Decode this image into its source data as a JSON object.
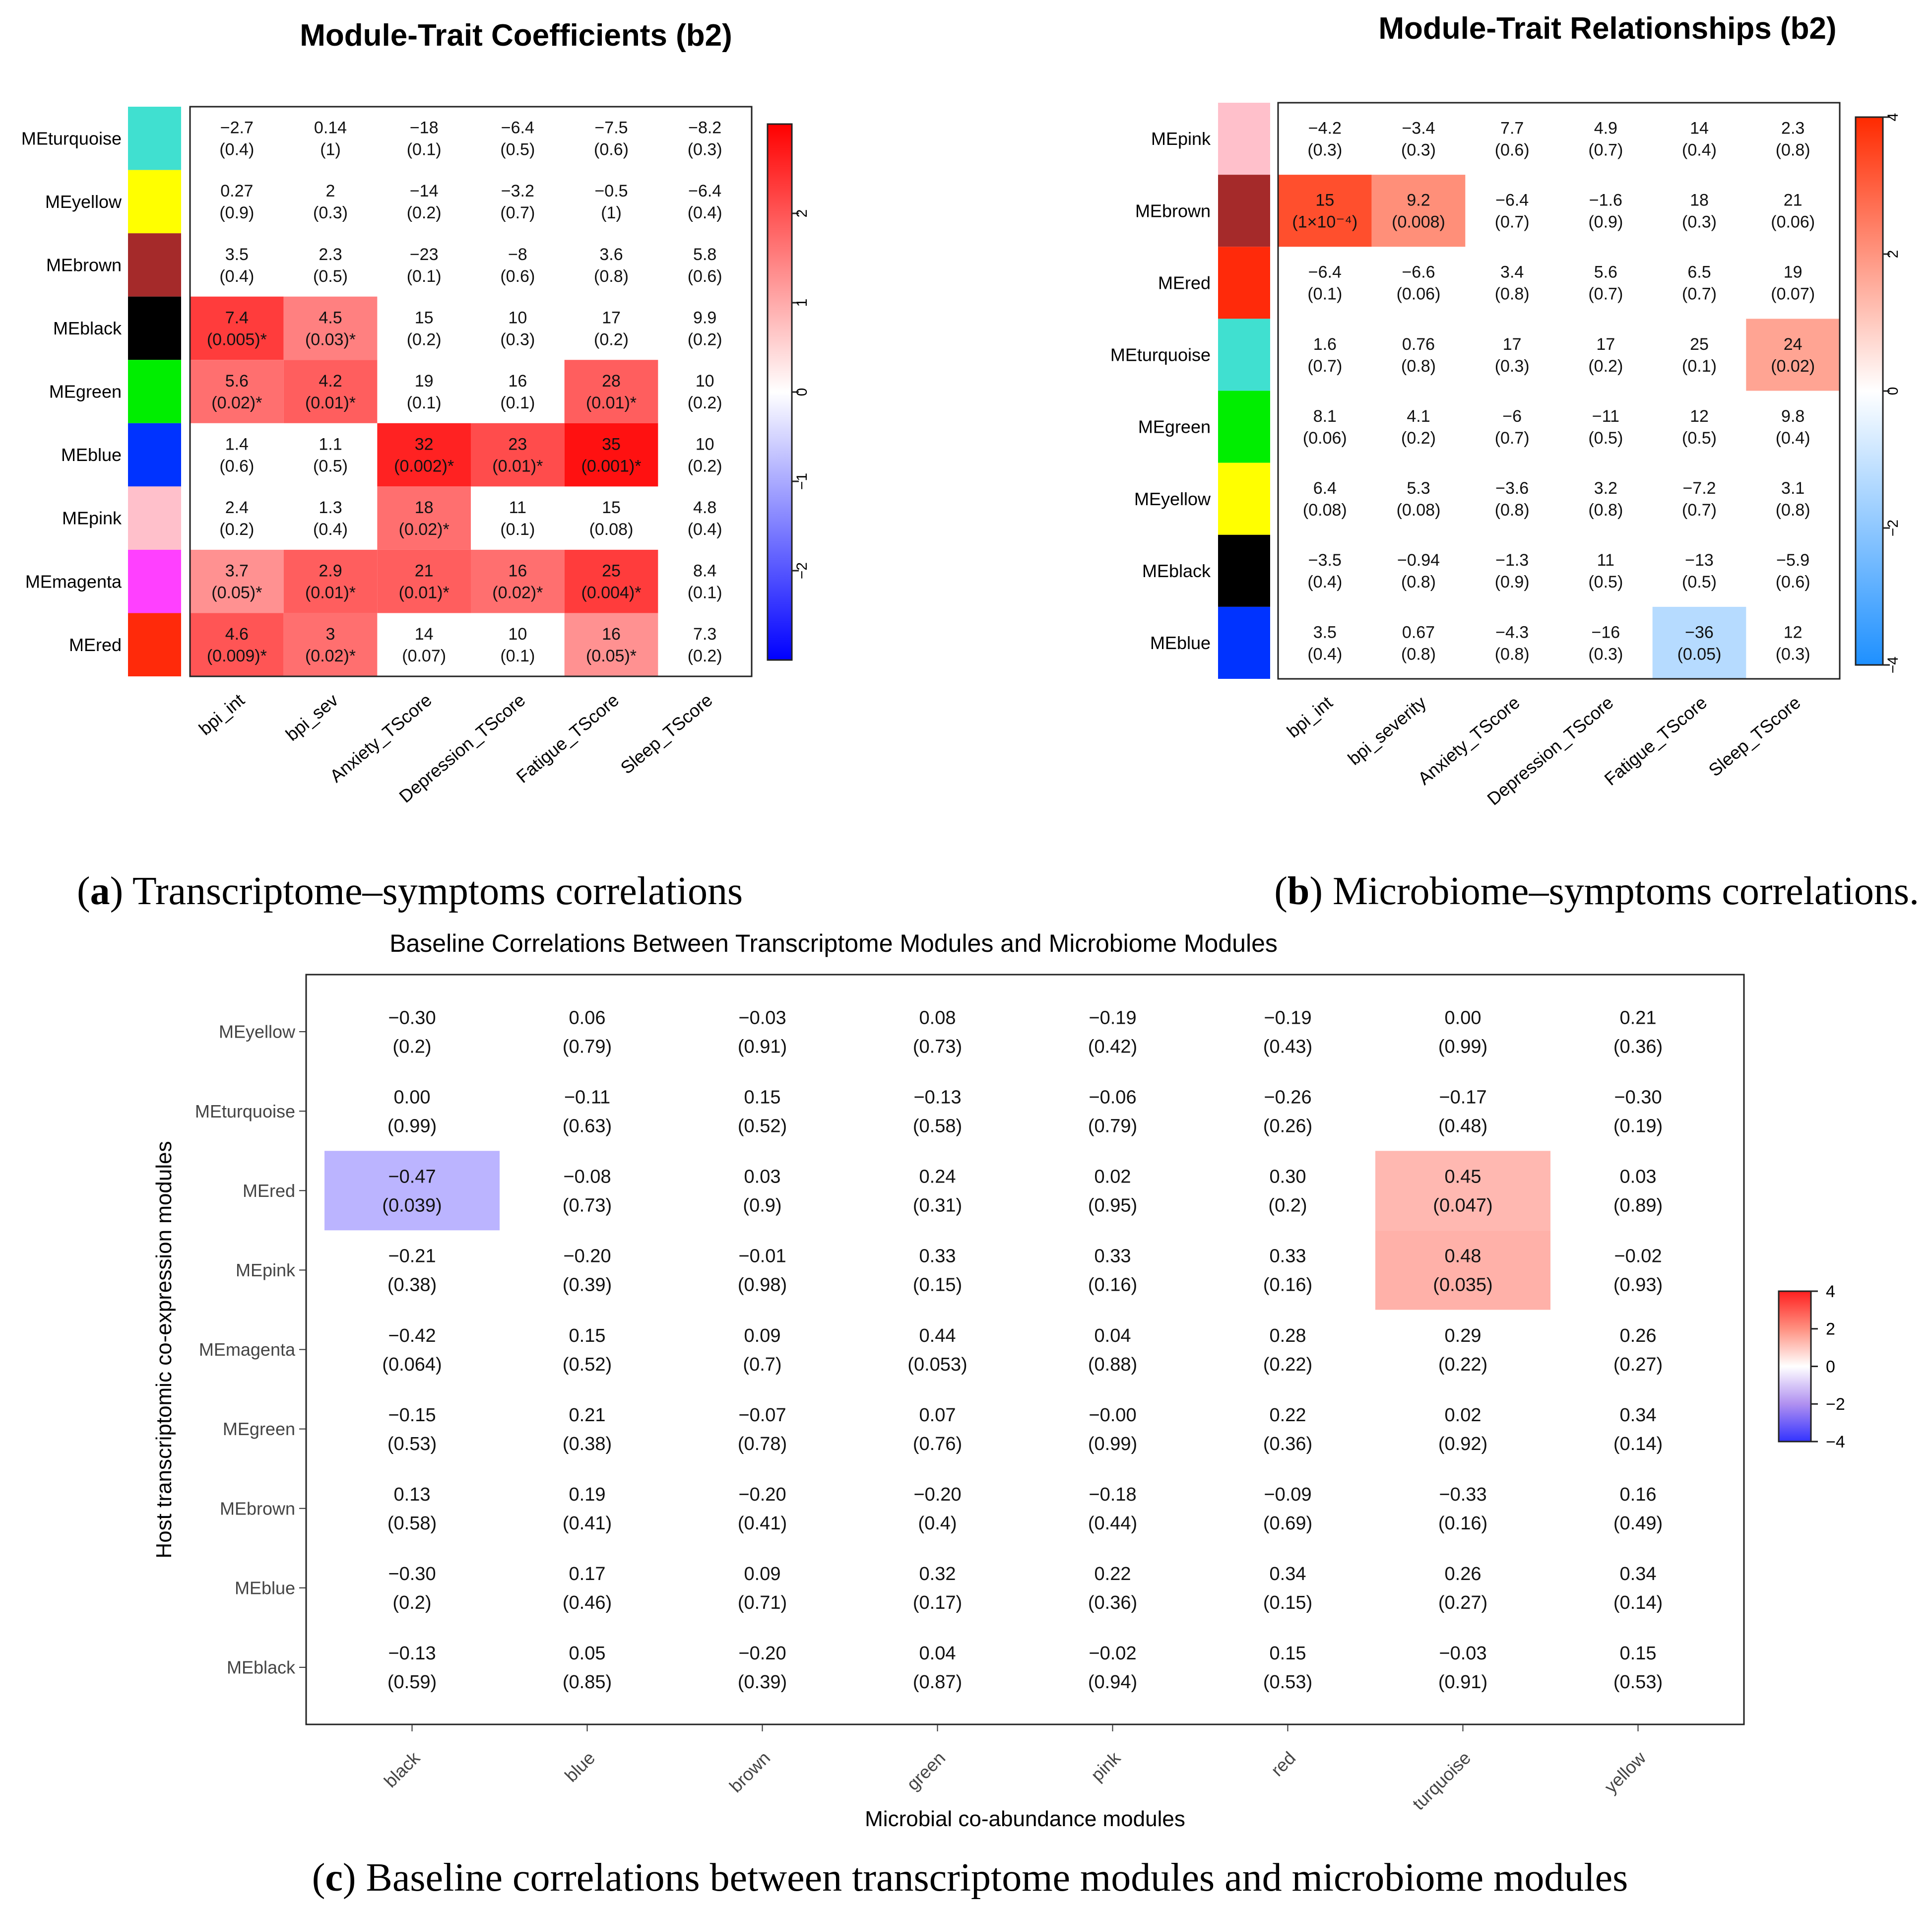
{
  "captions": {
    "a_letter": "a",
    "a_text": " Transcriptome–symptoms correlations",
    "b_letter": "b",
    "b_text": " Microbiome–symptoms correlations.",
    "c_letter": "c",
    "c_text": " Baseline correlations between transcriptome modules and microbiome modules"
  },
  "chart_data": [
    {
      "id": "a",
      "type": "heatmap",
      "title": "Module-Trait Coefficients (b2)",
      "rows": [
        "MEturquoise",
        "MEyellow",
        "MEbrown",
        "MEblack",
        "MEgreen",
        "MEblue",
        "MEpink",
        "MEmagenta",
        "MEred"
      ],
      "row_colors": [
        "#40E0D0",
        "#FFFF00",
        "#A52A2A",
        "#000000",
        "#00EE00",
        "#0033FF",
        "#FFC0CB",
        "#FF40FF",
        "#FF2A0A"
      ],
      "columns": [
        "bpi_int",
        "bpi_sev",
        "Anxiety_TScore",
        "Depression_TScore",
        "Fatigue_TScore",
        "Sleep_TScore"
      ],
      "values": [
        [
          "−2.7",
          "0.14",
          "−18",
          "−6.4",
          "−7.5",
          "−8.2"
        ],
        [
          "0.27",
          "2",
          "−14",
          "−3.2",
          "−0.5",
          "−6.4"
        ],
        [
          "3.5",
          "2.3",
          "−23",
          "−8",
          "3.6",
          "5.8"
        ],
        [
          "7.4",
          "4.5",
          "15",
          "10",
          "17",
          "9.9"
        ],
        [
          "5.6",
          "4.2",
          "19",
          "16",
          "28",
          "10"
        ],
        [
          "1.4",
          "1.1",
          "32",
          "23",
          "35",
          "10"
        ],
        [
          "2.4",
          "1.3",
          "18",
          "11",
          "15",
          "4.8"
        ],
        [
          "3.7",
          "2.9",
          "21",
          "16",
          "25",
          "8.4"
        ],
        [
          "4.6",
          "3",
          "14",
          "10",
          "16",
          "7.3"
        ]
      ],
      "pvalues": [
        [
          "(0.4)",
          "(1)",
          "(0.1)",
          "(0.5)",
          "(0.6)",
          "(0.3)"
        ],
        [
          "(0.9)",
          "(0.3)",
          "(0.2)",
          "(0.7)",
          "(1)",
          "(0.4)"
        ],
        [
          "(0.4)",
          "(0.5)",
          "(0.1)",
          "(0.6)",
          "(0.8)",
          "(0.6)"
        ],
        [
          "(0.005)*",
          "(0.03)*",
          "(0.2)",
          "(0.3)",
          "(0.2)",
          "(0.2)"
        ],
        [
          "(0.02)*",
          "(0.01)*",
          "(0.1)",
          "(0.1)",
          "(0.01)*",
          "(0.2)"
        ],
        [
          "(0.6)",
          "(0.5)",
          "(0.002)*",
          "(0.01)*",
          "(0.001)*",
          "(0.2)"
        ],
        [
          "(0.2)",
          "(0.4)",
          "(0.02)*",
          "(0.1)",
          "(0.08)",
          "(0.4)"
        ],
        [
          "(0.05)*",
          "(0.01)*",
          "(0.01)*",
          "(0.02)*",
          "(0.004)*",
          "(0.1)"
        ],
        [
          "(0.009)*",
          "(0.02)*",
          "(0.07)",
          "(0.1)",
          "(0.05)*",
          "(0.2)"
        ]
      ],
      "fill_scores": [
        [
          0,
          0,
          0,
          0,
          0,
          0
        ],
        [
          0,
          0,
          0,
          0,
          0,
          0
        ],
        [
          0,
          0,
          0,
          0,
          0,
          0
        ],
        [
          2.3,
          1.5,
          0,
          0,
          0,
          0
        ],
        [
          1.7,
          1.9,
          0,
          0,
          1.9,
          0
        ],
        [
          0,
          0,
          2.6,
          2.1,
          2.8,
          0
        ],
        [
          0,
          0,
          1.7,
          0,
          0,
          0
        ],
        [
          1.3,
          1.9,
          1.9,
          1.7,
          2.3,
          0
        ],
        [
          2.0,
          1.7,
          0,
          0,
          1.3,
          0
        ]
      ],
      "colorbar": {
        "min": -3,
        "max": 3,
        "ticks": [
          "2",
          "1",
          "0",
          "−1",
          "−2"
        ],
        "tick_values": [
          2,
          1,
          0,
          -1,
          -2
        ]
      }
    },
    {
      "id": "b",
      "type": "heatmap",
      "title": "Module-Trait Relationships (b2)",
      "rows": [
        "MEpink",
        "MEbrown",
        "MEred",
        "MEturquoise",
        "MEgreen",
        "MEyellow",
        "MEblack",
        "MEblue"
      ],
      "row_colors": [
        "#FFC0CB",
        "#A52A2A",
        "#FF2A0A",
        "#40E0D0",
        "#00EE00",
        "#FFFF00",
        "#000000",
        "#0033FF"
      ],
      "columns": [
        "bpi_int",
        "bpi_severity",
        "Anxiety_TScore",
        "Depression_TScore",
        "Fatigue_TScore",
        "Sleep_TScore"
      ],
      "values": [
        [
          "−4.2",
          "−3.4",
          "7.7",
          "4.9",
          "14",
          "2.3"
        ],
        [
          "15",
          "9.2",
          "−6.4",
          "−1.6",
          "18",
          "21"
        ],
        [
          "−6.4",
          "−6.6",
          "3.4",
          "5.6",
          "6.5",
          "19"
        ],
        [
          "1.6",
          "0.76",
          "17",
          "17",
          "25",
          "24"
        ],
        [
          "8.1",
          "4.1",
          "−6",
          "−11",
          "12",
          "9.8"
        ],
        [
          "6.4",
          "5.3",
          "−3.6",
          "3.2",
          "−7.2",
          "3.1"
        ],
        [
          "−3.5",
          "−0.94",
          "−1.3",
          "11",
          "−13",
          "−5.9"
        ],
        [
          "3.5",
          "0.67",
          "−4.3",
          "−16",
          "−36",
          "12"
        ]
      ],
      "pvalues": [
        [
          "(0.3)",
          "(0.3)",
          "(0.6)",
          "(0.7)",
          "(0.4)",
          "(0.8)"
        ],
        [
          "(1×10⁻⁴)",
          "(0.008)",
          "(0.7)",
          "(0.9)",
          "(0.3)",
          "(0.06)"
        ],
        [
          "(0.1)",
          "(0.06)",
          "(0.8)",
          "(0.7)",
          "(0.7)",
          "(0.07)"
        ],
        [
          "(0.7)",
          "(0.8)",
          "(0.3)",
          "(0.2)",
          "(0.1)",
          "(0.02)"
        ],
        [
          "(0.06)",
          "(0.2)",
          "(0.7)",
          "(0.5)",
          "(0.5)",
          "(0.4)"
        ],
        [
          "(0.08)",
          "(0.08)",
          "(0.8)",
          "(0.8)",
          "(0.7)",
          "(0.8)"
        ],
        [
          "(0.4)",
          "(0.8)",
          "(0.9)",
          "(0.5)",
          "(0.5)",
          "(0.6)"
        ],
        [
          "(0.4)",
          "(0.8)",
          "(0.8)",
          "(0.3)",
          "(0.05)",
          "(0.3)"
        ]
      ],
      "fill_scores": [
        [
          0,
          0,
          0,
          0,
          0,
          0
        ],
        [
          3.3,
          2.1,
          0,
          0,
          0,
          0
        ],
        [
          0,
          0,
          0,
          0,
          0,
          0
        ],
        [
          0,
          0,
          0,
          0,
          0,
          1.7
        ],
        [
          0,
          0,
          0,
          0,
          0,
          0
        ],
        [
          0,
          0,
          0,
          0,
          0,
          0
        ],
        [
          0,
          0,
          0,
          0,
          0,
          0
        ],
        [
          0,
          0,
          0,
          0,
          -1.3,
          0
        ]
      ],
      "colorbar": {
        "min": -4,
        "max": 4,
        "ticks": [
          "4",
          "2",
          "0",
          "−2",
          "−4"
        ],
        "tick_values": [
          4,
          2,
          0,
          -2,
          -4
        ]
      }
    },
    {
      "id": "c",
      "type": "heatmap",
      "title": "Baseline Correlations Between Transcriptome Modules and Microbiome Modules",
      "xlabel": "Microbial co-abundance modules",
      "ylabel": "Host transcriptomic co-expression modules",
      "rows": [
        "MEyellow",
        "MEturquoise",
        "MEred",
        "MEpink",
        "MEmagenta",
        "MEgreen",
        "MEbrown",
        "MEblue",
        "MEblack"
      ],
      "columns": [
        "black",
        "blue",
        "brown",
        "green",
        "pink",
        "red",
        "turquoise",
        "yellow"
      ],
      "values": [
        [
          "−0.30",
          "0.06",
          "−0.03",
          "0.08",
          "−0.19",
          "−0.19",
          "0.00",
          "0.21"
        ],
        [
          "0.00",
          "−0.11",
          "0.15",
          "−0.13",
          "−0.06",
          "−0.26",
          "−0.17",
          "−0.30"
        ],
        [
          "−0.47",
          "−0.08",
          "0.03",
          "0.24",
          "0.02",
          "0.30",
          "0.45",
          "0.03"
        ],
        [
          "−0.21",
          "−0.20",
          "−0.01",
          "0.33",
          "0.33",
          "0.33",
          "0.48",
          "−0.02"
        ],
        [
          "−0.42",
          "0.15",
          "0.09",
          "0.44",
          "0.04",
          "0.28",
          "0.29",
          "0.26"
        ],
        [
          "−0.15",
          "0.21",
          "−0.07",
          "0.07",
          "−0.00",
          "0.22",
          "0.02",
          "0.34"
        ],
        [
          "0.13",
          "0.19",
          "−0.20",
          "−0.20",
          "−0.18",
          "−0.09",
          "−0.33",
          "0.16"
        ],
        [
          "−0.30",
          "0.17",
          "0.09",
          "0.32",
          "0.22",
          "0.34",
          "0.26",
          "0.34"
        ],
        [
          "−0.13",
          "0.05",
          "−0.20",
          "0.04",
          "−0.02",
          "0.15",
          "−0.03",
          "0.15"
        ]
      ],
      "pvalues": [
        [
          "(0.2)",
          "(0.79)",
          "(0.91)",
          "(0.73)",
          "(0.42)",
          "(0.43)",
          "(0.99)",
          "(0.36)"
        ],
        [
          "(0.99)",
          "(0.63)",
          "(0.52)",
          "(0.58)",
          "(0.79)",
          "(0.26)",
          "(0.48)",
          "(0.19)"
        ],
        [
          "(0.039)",
          "(0.73)",
          "(0.9)",
          "(0.31)",
          "(0.95)",
          "(0.2)",
          "(0.047)",
          "(0.89)"
        ],
        [
          "(0.38)",
          "(0.39)",
          "(0.98)",
          "(0.15)",
          "(0.16)",
          "(0.16)",
          "(0.035)",
          "(0.93)"
        ],
        [
          "(0.064)",
          "(0.52)",
          "(0.7)",
          "(0.053)",
          "(0.88)",
          "(0.22)",
          "(0.22)",
          "(0.27)"
        ],
        [
          "(0.53)",
          "(0.38)",
          "(0.78)",
          "(0.76)",
          "(0.99)",
          "(0.36)",
          "(0.92)",
          "(0.14)"
        ],
        [
          "(0.58)",
          "(0.41)",
          "(0.41)",
          "(0.4)",
          "(0.44)",
          "(0.69)",
          "(0.16)",
          "(0.49)"
        ],
        [
          "(0.2)",
          "(0.46)",
          "(0.71)",
          "(0.17)",
          "(0.36)",
          "(0.15)",
          "(0.27)",
          "(0.14)"
        ],
        [
          "(0.59)",
          "(0.85)",
          "(0.39)",
          "(0.87)",
          "(0.94)",
          "(0.53)",
          "(0.91)",
          "(0.53)"
        ]
      ],
      "fill_scores": [
        [
          0,
          0,
          0,
          0,
          0,
          0,
          0,
          0
        ],
        [
          0,
          0,
          0,
          0,
          0,
          0,
          0,
          0
        ],
        [
          -1.4,
          0,
          0,
          0,
          0,
          0,
          1.33,
          0
        ],
        [
          0,
          0,
          0,
          0,
          0,
          0,
          1.46,
          0
        ],
        [
          0,
          0,
          0,
          0,
          0,
          0,
          0,
          0
        ],
        [
          0,
          0,
          0,
          0,
          0,
          0,
          0,
          0
        ],
        [
          0,
          0,
          0,
          0,
          0,
          0,
          0,
          0
        ],
        [
          0,
          0,
          0,
          0,
          0,
          0,
          0,
          0
        ],
        [
          0,
          0,
          0,
          0,
          0,
          0,
          0,
          0
        ]
      ],
      "colorbar": {
        "min": -4,
        "max": 4,
        "ticks": [
          "4",
          "2",
          "0",
          "−2",
          "−4"
        ],
        "tick_values": [
          4,
          2,
          0,
          -2,
          -4
        ]
      }
    }
  ]
}
